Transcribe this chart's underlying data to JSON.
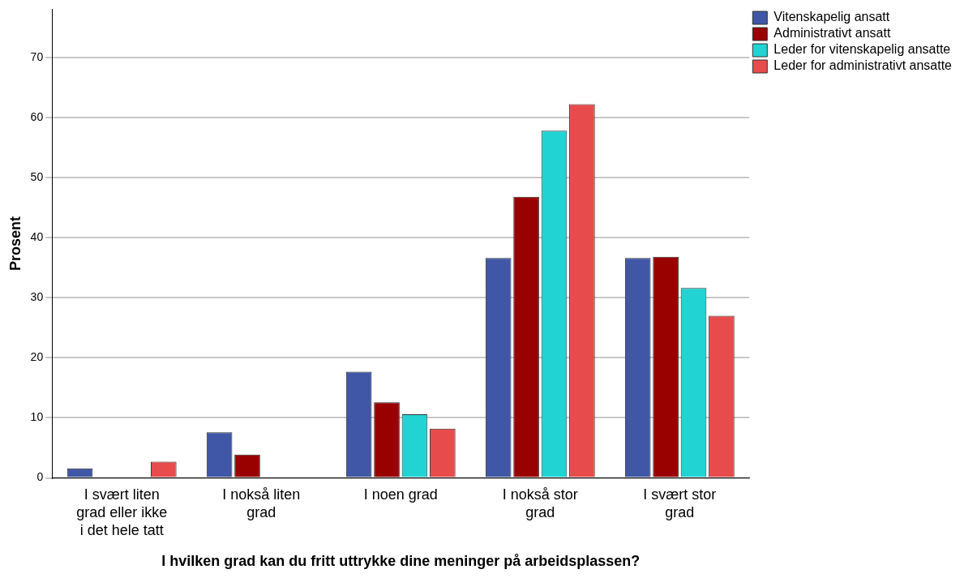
{
  "chart_data": {
    "type": "bar",
    "xlabel": "I hvilken grad kan du fritt uttrykke dine meninger på arbeidsplassen?",
    "ylabel": "Prosent",
    "categories": [
      "I svært liten grad eller ikke i det hele tatt",
      "I nokså liten grad",
      "I noen grad",
      "I nokså stor grad",
      "I svært stor grad"
    ],
    "series": [
      {
        "name": "Vitenskapelig ansatt",
        "color": "#3f57a6",
        "values": [
          1.6,
          7.6,
          17.7,
          36.6,
          36.6
        ]
      },
      {
        "name": "Administrativt ansatt",
        "color": "#990000",
        "values": [
          0,
          3.9,
          12.6,
          46.8,
          36.8
        ]
      },
      {
        "name": "Leder for vitenskapelig ansatte",
        "color": "#21d3d3",
        "values": [
          0,
          0,
          10.6,
          57.8,
          31.6
        ]
      },
      {
        "name": "Leder for administrativt ansatte",
        "color": "#e84b4b",
        "values": [
          2.7,
          0,
          8.2,
          62.2,
          27.0
        ]
      }
    ],
    "ylim": [
      0,
      78
    ],
    "yticks": [
      0,
      10,
      20,
      30,
      40,
      50,
      60,
      70
    ],
    "grid": "y",
    "legend": "top right"
  }
}
